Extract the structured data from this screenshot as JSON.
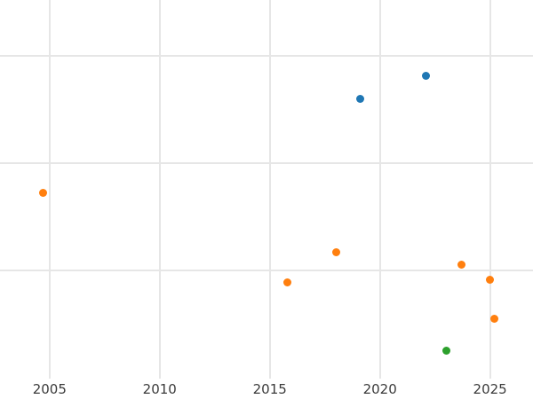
{
  "chart_data": {
    "type": "scatter",
    "title": "",
    "xlabel": "",
    "ylabel": "",
    "grid": true,
    "legend": "none",
    "x_ticks": [
      {
        "value": 2005,
        "label": "2005"
      },
      {
        "value": 2010,
        "label": "2010"
      },
      {
        "value": 2015,
        "label": "2015"
      },
      {
        "value": 2020,
        "label": "2020"
      },
      {
        "value": 2025,
        "label": "2025"
      }
    ],
    "x_range": [
      2002.75,
      2026.95
    ],
    "y_range": [
      -0.2,
      3.52
    ],
    "y_tick_labels_visible": false,
    "y_gridlines": [
      1,
      2,
      3
    ],
    "series": [
      {
        "name": "blue-series",
        "color": "#1f77b4",
        "points": [
          {
            "x": 2019.1,
            "y": 2.6
          },
          {
            "x": 2022.1,
            "y": 2.81
          }
        ]
      },
      {
        "name": "orange-series",
        "color": "#ff7f0e",
        "points": [
          {
            "x": 2004.7,
            "y": 1.72
          },
          {
            "x": 2015.8,
            "y": 0.89
          },
          {
            "x": 2018.0,
            "y": 1.17
          },
          {
            "x": 2023.7,
            "y": 1.05
          },
          {
            "x": 2025.0,
            "y": 0.91
          },
          {
            "x": 2025.2,
            "y": 0.55
          }
        ]
      },
      {
        "name": "green-series",
        "color": "#2ca02c",
        "points": [
          {
            "x": 2023.0,
            "y": 0.25
          }
        ]
      }
    ],
    "colors": {
      "background": "#ffffff",
      "gridline": "#e6e6e6",
      "tick_label": "#3b3b3b"
    }
  }
}
